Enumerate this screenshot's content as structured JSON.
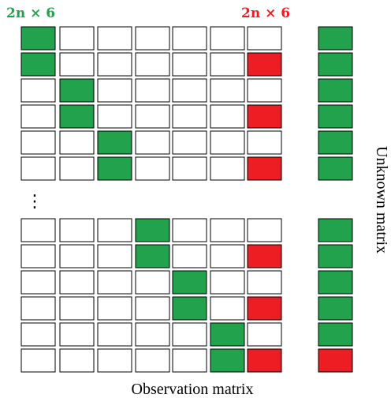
{
  "labels": {
    "top_left": "2n × 6",
    "top_right": "2n × 6",
    "bottom": "Observation matrix",
    "right": "Unknown matrix",
    "ellipsis": "⋮"
  },
  "colors": {
    "green": "#22a24c",
    "red": "#ec1e24",
    "empty": "#ffffff",
    "outline": "#000000"
  },
  "observation_matrix": {
    "top_block": [
      [
        "G",
        "W",
        "W",
        "W",
        "W",
        "W",
        "W"
      ],
      [
        "G",
        "W",
        "W",
        "W",
        "W",
        "W",
        "R"
      ],
      [
        "W",
        "G",
        "W",
        "W",
        "W",
        "W",
        "W"
      ],
      [
        "W",
        "G",
        "W",
        "W",
        "W",
        "W",
        "R"
      ],
      [
        "W",
        "W",
        "G",
        "W",
        "W",
        "W",
        "W"
      ],
      [
        "W",
        "W",
        "G",
        "W",
        "W",
        "W",
        "R"
      ]
    ],
    "bottom_block": [
      [
        "W",
        "W",
        "W",
        "G",
        "W",
        "W",
        "W"
      ],
      [
        "W",
        "W",
        "W",
        "G",
        "W",
        "W",
        "R"
      ],
      [
        "W",
        "W",
        "W",
        "W",
        "G",
        "W",
        "W"
      ],
      [
        "W",
        "W",
        "W",
        "W",
        "G",
        "W",
        "R"
      ],
      [
        "W",
        "W",
        "W",
        "W",
        "W",
        "G",
        "W"
      ],
      [
        "W",
        "W",
        "W",
        "W",
        "W",
        "G",
        "R"
      ]
    ]
  },
  "unknown_matrix": {
    "top_block": [
      "G",
      "G",
      "G",
      "G",
      "G",
      "G"
    ],
    "bottom_block": [
      "G",
      "G",
      "G",
      "G",
      "G",
      "R"
    ]
  }
}
